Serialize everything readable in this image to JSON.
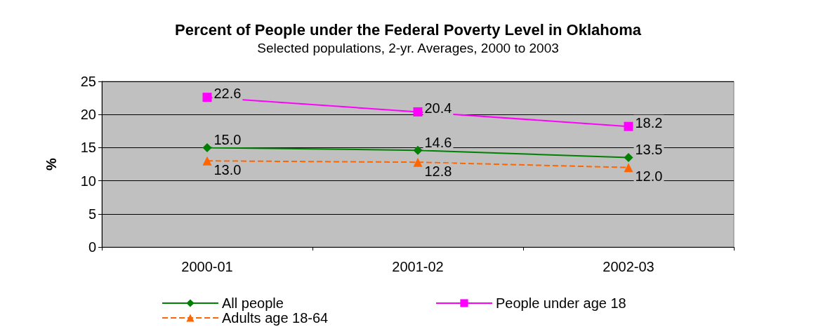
{
  "chart_data": {
    "type": "line",
    "title": "Percent of People under the Federal Poverty Level in Oklahoma",
    "subtitle": "Selected populations, 2-yr. Averages, 2000 to 2003",
    "ylabel": "%",
    "categories": [
      "2000-01",
      "2001-02",
      "2002-03"
    ],
    "series": [
      {
        "name": "All people",
        "color": "#008000",
        "marker": "diamond",
        "line_style": "solid",
        "values": [
          15.0,
          14.6,
          13.5
        ],
        "value_labels": [
          "15.0",
          "14.6",
          "13.5"
        ]
      },
      {
        "name": "People under age 18",
        "color": "#ff00ff",
        "marker": "square",
        "line_style": "solid",
        "values": [
          22.6,
          20.4,
          18.2
        ],
        "value_labels": [
          "22.6",
          "20.4",
          "18.2"
        ]
      },
      {
        "name": "Adults age 18-64",
        "color": "#ff6600",
        "marker": "triangle",
        "line_style": "dashed",
        "values": [
          13.0,
          12.8,
          12.0
        ],
        "value_labels": [
          "13.0",
          "12.8",
          "12.0"
        ]
      }
    ],
    "ylim": [
      0,
      25
    ],
    "yticks": [
      0,
      5,
      10,
      15,
      20,
      25
    ],
    "grid": "y",
    "legend": "bottom"
  }
}
